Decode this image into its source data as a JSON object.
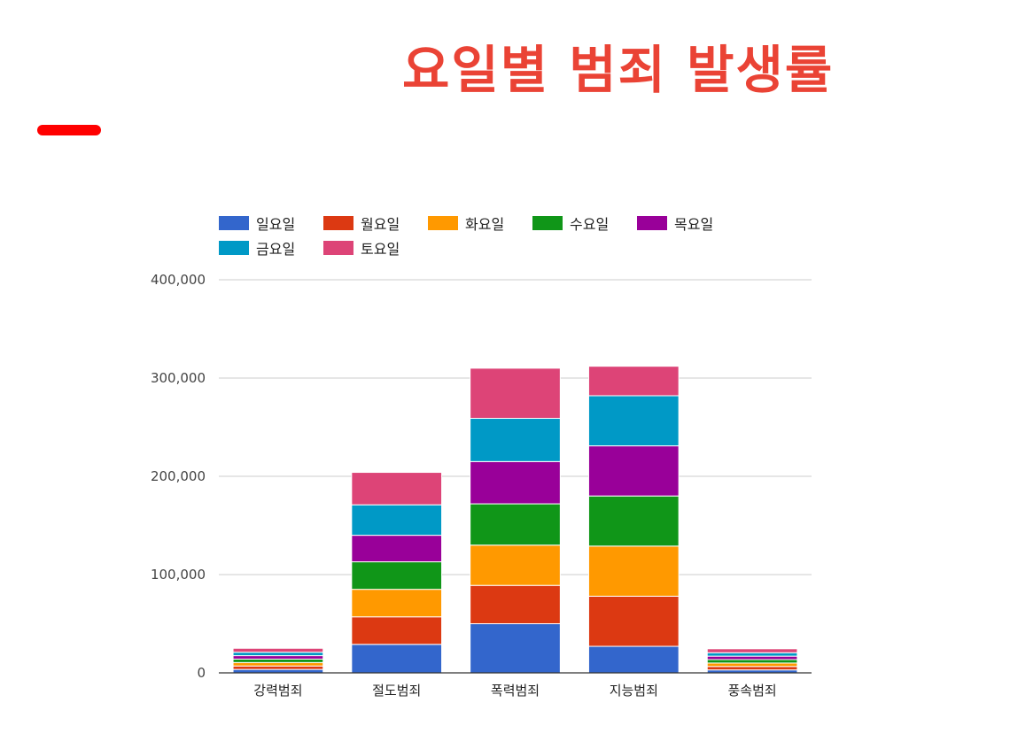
{
  "slide": {
    "title": "요일별 범죄 발생률",
    "accent_color": "#ff0000",
    "title_color": "#ea4335"
  },
  "chart_data": {
    "type": "bar",
    "stacked": true,
    "title": "",
    "xlabel": "",
    "ylabel": "",
    "ylim": [
      0,
      400000
    ],
    "yticks": [
      0,
      100000,
      200000,
      300000,
      400000
    ],
    "ytick_labels": [
      "0",
      "100,000",
      "200,000",
      "300,000",
      "400,000"
    ],
    "grid": true,
    "legend_position": "top",
    "categories": [
      "강력범죄",
      "절도범죄",
      "폭력범죄",
      "지능범죄",
      "풍속범죄"
    ],
    "series": [
      {
        "name": "일요일",
        "color": "#3366cc",
        "values": [
          3500,
          29000,
          50000,
          27000,
          3000
        ]
      },
      {
        "name": "월요일",
        "color": "#dc3912",
        "values": [
          3500,
          28000,
          39000,
          51000,
          3500
        ]
      },
      {
        "name": "화요일",
        "color": "#ff9900",
        "values": [
          3500,
          28000,
          41000,
          51000,
          3500
        ]
      },
      {
        "name": "수요일",
        "color": "#109618",
        "values": [
          3500,
          28000,
          42000,
          51000,
          3500
        ]
      },
      {
        "name": "목요일",
        "color": "#990099",
        "values": [
          3500,
          27000,
          43000,
          51000,
          3500
        ]
      },
      {
        "name": "금요일",
        "color": "#0099c6",
        "values": [
          3500,
          31000,
          44000,
          51000,
          3500
        ]
      },
      {
        "name": "토요일",
        "color": "#dd4477",
        "values": [
          4000,
          33000,
          51000,
          30000,
          4000
        ]
      }
    ]
  }
}
